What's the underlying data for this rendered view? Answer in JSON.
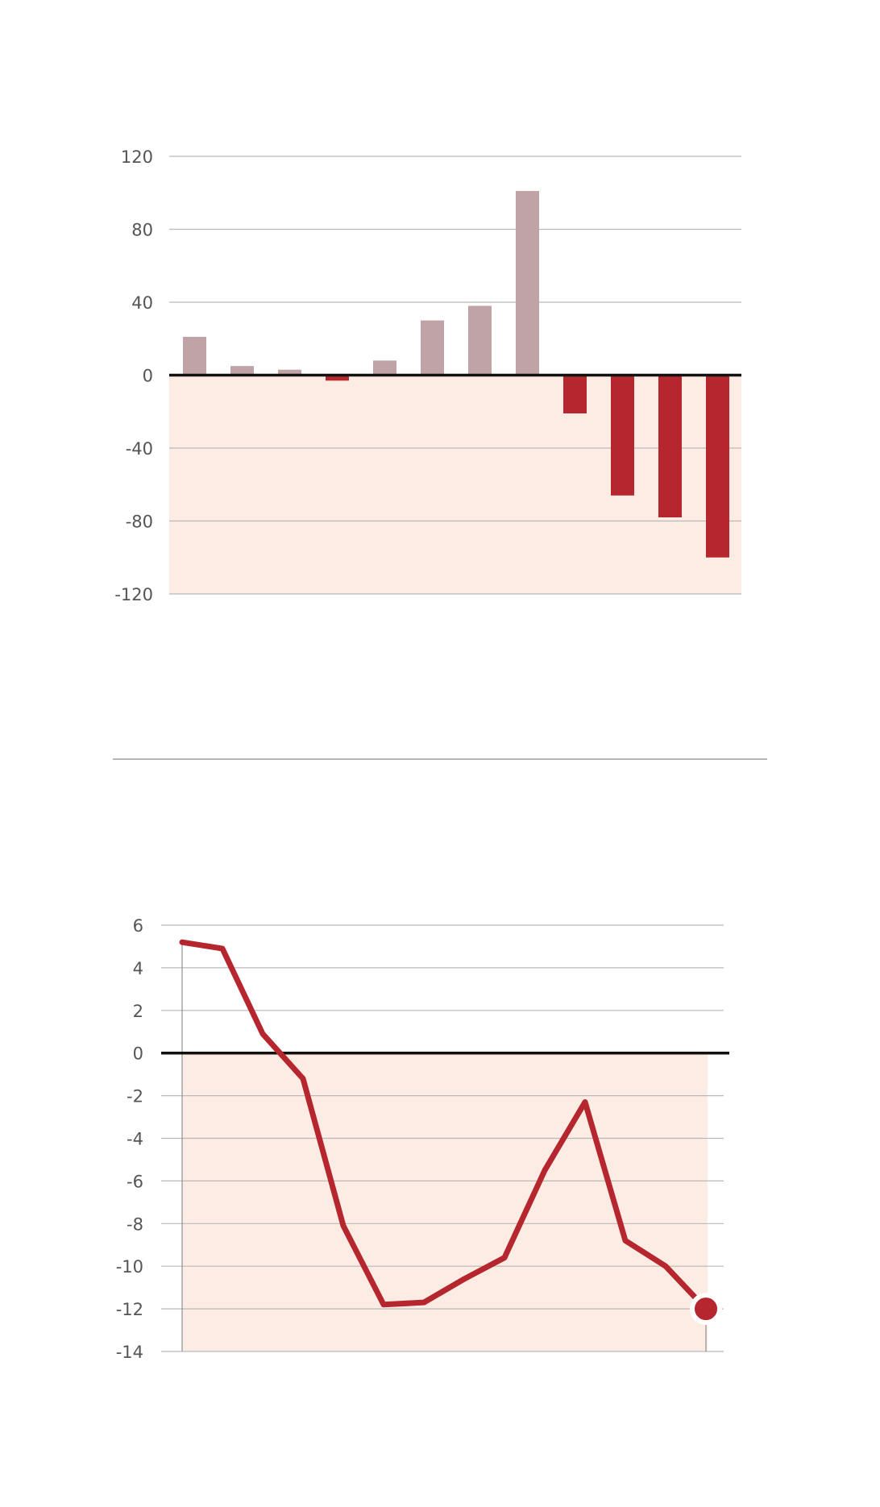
{
  "colors": {
    "positive_bar": "#bfa3a6",
    "negative_bar": "#b5262f",
    "line": "#b5262f",
    "negative_region": "#fdece3",
    "grid": "#b9b9b9",
    "zero_line": "#111111",
    "tick_text": "#555555"
  },
  "chart_data": [
    {
      "type": "bar",
      "title": "",
      "xlabel": "",
      "ylabel": "",
      "ylim": [
        -120,
        120
      ],
      "yticks": [
        120,
        80,
        40,
        0,
        -40,
        -80,
        -120
      ],
      "tick_labels": [
        "120",
        "80",
        "40",
        "0",
        "-40",
        "-80",
        "-120"
      ],
      "grid": true,
      "negative_region_shaded": true,
      "values": [
        21,
        5,
        3,
        -3,
        8,
        30,
        38,
        101,
        -21,
        -66,
        -78,
        -100
      ]
    },
    {
      "type": "line",
      "title": "",
      "xlabel": "",
      "ylabel": "",
      "ylim": [
        -14,
        6
      ],
      "yticks": [
        6,
        4,
        2,
        0,
        -2,
        -4,
        -6,
        -8,
        -10,
        -12,
        -14
      ],
      "tick_labels": [
        "6",
        "4",
        "2",
        "0",
        "-2",
        "-4",
        "-6",
        "-8",
        "-10",
        "-12",
        "-14"
      ],
      "grid": true,
      "negative_region_shaded": true,
      "last_point_marker": true,
      "values": [
        5.2,
        4.9,
        0.9,
        -1.2,
        -8.1,
        -11.8,
        -11.7,
        -10.6,
        -9.6,
        -5.5,
        -2.3,
        -8.8,
        -10.0,
        -12.0
      ]
    }
  ]
}
